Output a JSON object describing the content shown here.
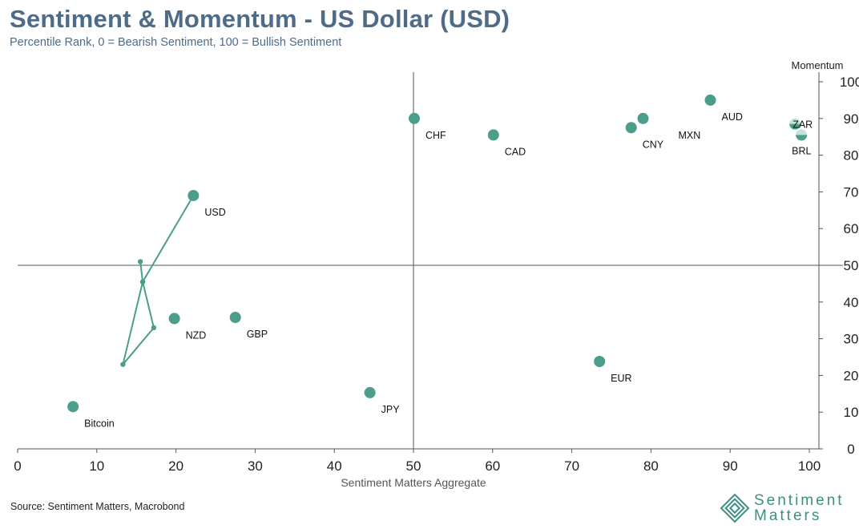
{
  "header": {
    "title": "Sentiment & Momentum - US Dollar (USD)",
    "subtitle": "Percentile Rank, 0 = Bearish Sentiment, 100 = Bullish Sentiment"
  },
  "footer": {
    "source": "Source: Sentiment Matters, Macrobond",
    "logo_line1": "Sentiment",
    "logo_line2": "Matters"
  },
  "colors": {
    "marker": "#4a9e8a",
    "marker_light": "#c5e3da",
    "axis_line": "#555555",
    "title": "#4e6b88"
  },
  "chart_data": {
    "type": "scatter",
    "title": "Sentiment & Momentum - US Dollar (USD)",
    "xlabel": "Sentiment Matters Aggregate",
    "ylabel": "Momentum",
    "xlim": [
      0,
      100
    ],
    "ylim": [
      0,
      100
    ],
    "x_ticks": [
      0,
      10,
      20,
      30,
      40,
      50,
      60,
      70,
      80,
      90,
      100
    ],
    "y_ticks": [
      0,
      10,
      20,
      30,
      40,
      50,
      60,
      70,
      80,
      90,
      100
    ],
    "quadrant_lines": {
      "x": 50,
      "y": 50
    },
    "y_axis_position": "right",
    "points": [
      {
        "label": "USD",
        "x": 22.2,
        "y": 69
      },
      {
        "label": "CHF",
        "x": 50.1,
        "y": 90
      },
      {
        "label": "CAD",
        "x": 60.1,
        "y": 85.5
      },
      {
        "label": "CNY",
        "x": 77.5,
        "y": 87.5
      },
      {
        "label": "MXN",
        "x": 79,
        "y": 90
      },
      {
        "label": "AUD",
        "x": 87.5,
        "y": 95
      },
      {
        "label": "ZAR",
        "x": 98.2,
        "y": 88.5
      },
      {
        "label": "BRL",
        "x": 99,
        "y": 85.5
      },
      {
        "label": "NZD",
        "x": 19.8,
        "y": 35.5
      },
      {
        "label": "GBP",
        "x": 27.5,
        "y": 35.8
      },
      {
        "label": "EUR",
        "x": 73.5,
        "y": 23.8
      },
      {
        "label": "JPY",
        "x": 44.5,
        "y": 15.3
      },
      {
        "label": "Bitcoin",
        "x": 7,
        "y": 11.5
      }
    ],
    "trail": {
      "series": "USD",
      "points": [
        {
          "x": 15.5,
          "y": 51
        },
        {
          "x": 15.8,
          "y": 45.5
        },
        {
          "x": 17.2,
          "y": 33
        },
        {
          "x": 13.3,
          "y": 23
        },
        {
          "x": 15.8,
          "y": 45.5
        },
        {
          "x": 22.2,
          "y": 69
        }
      ]
    }
  }
}
